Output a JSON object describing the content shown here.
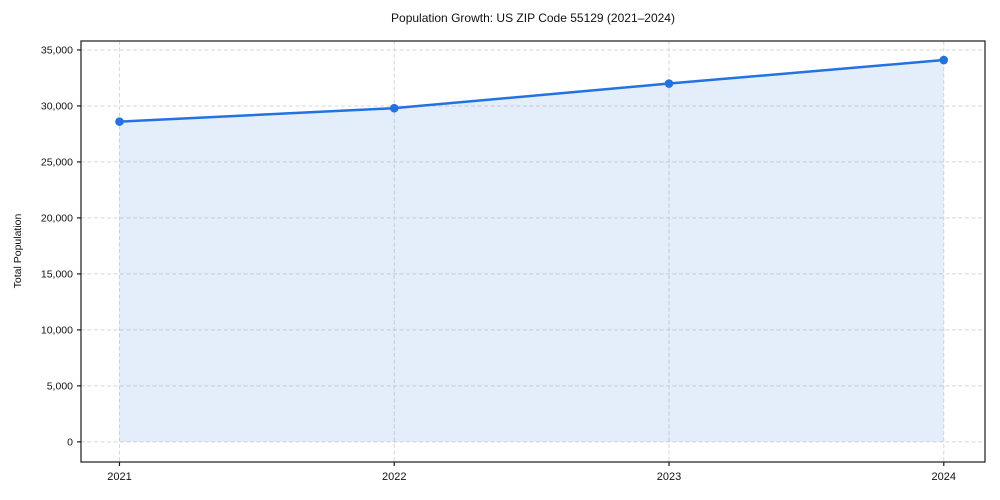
{
  "figure": {
    "title": "Population Growth: US ZIP Code 55129 (2021–2024)"
  },
  "chart_data": {
    "type": "area",
    "title": "Population Growth: US ZIP Code 55129 (2021–2024)",
    "x": [
      2021,
      2022,
      2023,
      2024
    ],
    "series": [
      {
        "name": "Total Population",
        "values": [
          28600,
          29800,
          32000,
          34100
        ]
      }
    ],
    "xlabel": "",
    "ylabel": "Total Population",
    "xlim": [
      2020.86,
      2024.15
    ],
    "ylim": [
      -1800,
      35800
    ],
    "xticks": [
      2021,
      2022,
      2023,
      2024
    ],
    "xtick_labels": [
      "2021",
      "2022",
      "2023",
      "2024"
    ],
    "yticks": [
      0,
      5000,
      10000,
      15000,
      20000,
      25000,
      30000,
      35000
    ],
    "ytick_labels": [
      "0",
      "5,000",
      "10,000",
      "15,000",
      "20,000",
      "25,000",
      "30,000",
      "35,000"
    ],
    "grid": true,
    "grid_style": "dashed",
    "legend": false,
    "fill_to_value": 0,
    "colors": {
      "line": "#2272e2",
      "fill": "#2272e2",
      "fill_opacity": 0.12,
      "grid": "#d7d7d7",
      "spine": "#1a1a1a",
      "tick": "#1a1a1a",
      "text": "#111111",
      "background": "#ffffff"
    }
  }
}
